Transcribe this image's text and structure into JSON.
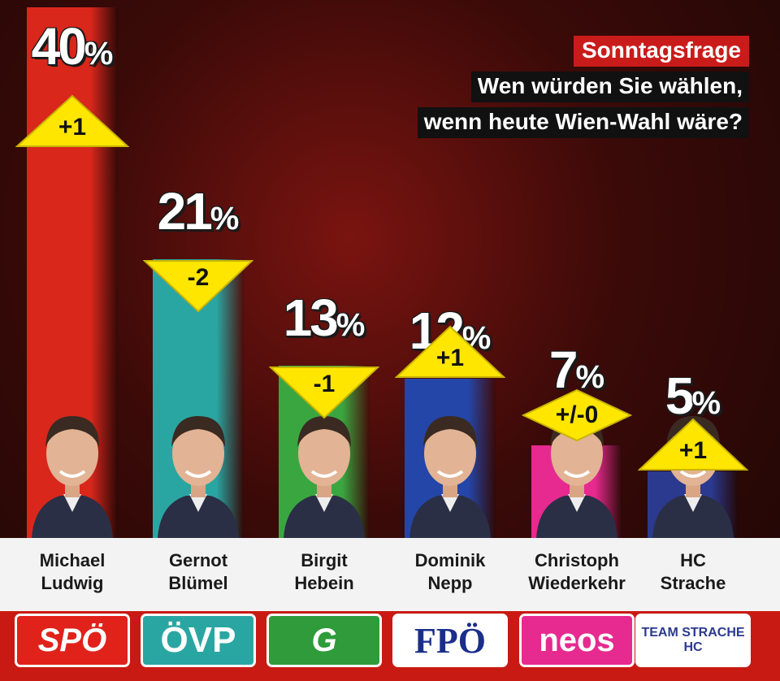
{
  "title": {
    "tag": "Sonntagsfrage",
    "line1": "Wen würden Sie wählen,",
    "line2": "wenn heute Wien-Wahl wäre?"
  },
  "chart_data": {
    "type": "bar",
    "title": "Sonntagsfrage",
    "subtitle": "Wen würden Sie wählen, wenn heute Wien-Wahl wäre?",
    "categories": [
      "SPÖ",
      "ÖVP",
      "Grüne",
      "FPÖ",
      "NEOS",
      "Team HC Strache"
    ],
    "values": [
      40,
      21,
      13,
      12,
      7,
      5
    ],
    "unit": "%",
    "ylim": [
      0,
      40
    ],
    "candidates": [
      {
        "first": "Michael",
        "last": "Ludwig",
        "party": "SPÖ",
        "value": 40,
        "change": "+1",
        "dir": "up",
        "color": "#d9271c"
      },
      {
        "first": "Gernot",
        "last": "Blümel",
        "party": "ÖVP",
        "value": 21,
        "change": "-2",
        "dir": "down",
        "color": "#2aa6a2"
      },
      {
        "first": "Birgit",
        "last": "Hebein",
        "party": "Grüne",
        "value": 13,
        "change": "-1",
        "dir": "down",
        "color": "#3aa640"
      },
      {
        "first": "Dominik",
        "last": "Nepp",
        "party": "FPÖ",
        "value": 12,
        "change": "+1",
        "dir": "up",
        "color": "#2446a8"
      },
      {
        "first": "Christoph",
        "last": "Wiederkehr",
        "party": "NEOS",
        "value": 7,
        "change": "+/-0",
        "dir": "flat",
        "color": "#e62a8f"
      },
      {
        "first": "HC",
        "last": "Strache",
        "party": "Team HC Strache",
        "value": 5,
        "change": "+1",
        "dir": "up",
        "color": "#2b3a8f"
      }
    ],
    "logos": [
      "SPÖ",
      "ÖVP",
      "G",
      "FPÖ",
      "neos",
      "TEAM STRACHE HC"
    ]
  },
  "colors": {
    "accent_red": "#c91c1a",
    "arrow_yellow": "#ffe600"
  }
}
